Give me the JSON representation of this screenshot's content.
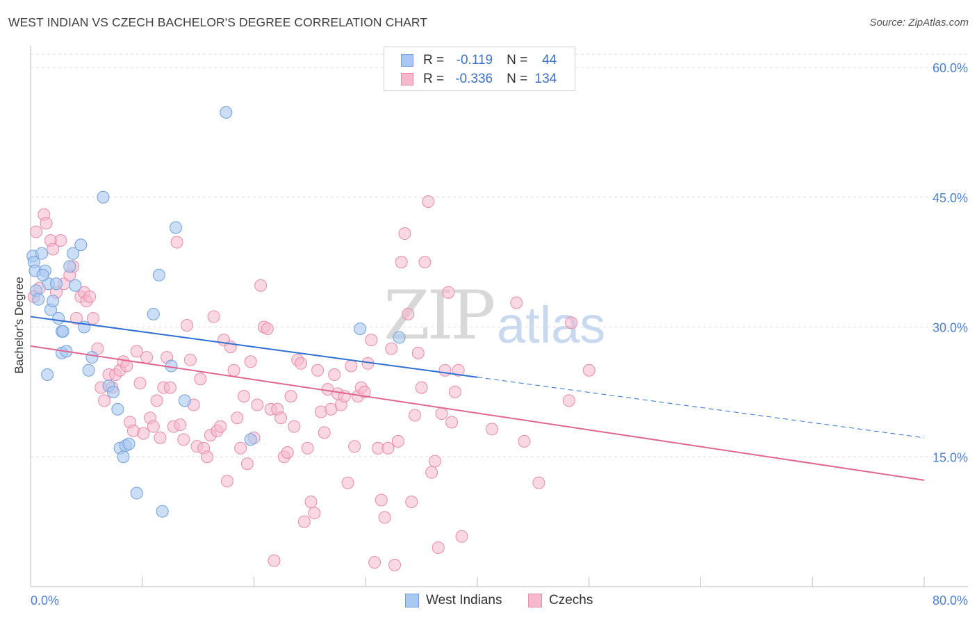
{
  "title": "WEST INDIAN VS CZECH BACHELOR'S DEGREE CORRELATION CHART",
  "source": "Source: ZipAtlas.com",
  "watermark": {
    "zip": "ZIP",
    "atlas": "atlas"
  },
  "legend": {
    "rows": [
      {
        "r_label": "R =",
        "r_value": "-0.119",
        "n_label": "N =",
        "n_value": "44"
      },
      {
        "r_label": "R =",
        "r_value": "-0.336",
        "n_label": "N =",
        "n_value": "134"
      }
    ],
    "bottom": [
      {
        "label": "West Indians"
      },
      {
        "label": "Czechs"
      }
    ]
  },
  "colors": {
    "west_indians_fill": "#a9c8f0",
    "west_indians_stroke": "#6f9fdc",
    "west_indians_line": "#2d6fd2",
    "czechs_fill": "#f6b8cc",
    "czechs_stroke": "#e88aa8",
    "czechs_line": "#e06690",
    "tick_text": "#4a7fd0",
    "grid": "#dddddd"
  },
  "chart_data": {
    "type": "scatter",
    "title": "WEST INDIAN VS CZECH BACHELOR'S DEGREE CORRELATION CHART",
    "xlabel": "",
    "ylabel": "Bachelor's Degree",
    "xlim": [
      0,
      80
    ],
    "ylim": [
      0,
      60
    ],
    "x_tick_labels": [
      "0.0%",
      "80.0%"
    ],
    "y_tick_values": [
      15,
      30,
      45,
      60
    ],
    "y_tick_labels": [
      "15.0%",
      "30.0%",
      "45.0%",
      "60.0%"
    ],
    "series": [
      {
        "name": "West Indians",
        "r": -0.119,
        "n": 44,
        "trend": {
          "x_start": 0,
          "y_start": 31.2,
          "x_solid_end": 40,
          "x_end": 80,
          "y_end": 17.2
        },
        "points": [
          [
            0.2,
            38.2
          ],
          [
            0.3,
            37.5
          ],
          [
            0.4,
            36.5
          ],
          [
            0.5,
            34.2
          ],
          [
            0.7,
            33.2
          ],
          [
            1.0,
            38.5
          ],
          [
            1.3,
            36.5
          ],
          [
            1.6,
            35.0
          ],
          [
            1.8,
            32.0
          ],
          [
            2.3,
            35.0
          ],
          [
            2.5,
            31.0
          ],
          [
            2.8,
            29.5
          ],
          [
            2.8,
            27.0
          ],
          [
            3.5,
            37.0
          ],
          [
            3.8,
            38.5
          ],
          [
            1.5,
            24.5
          ],
          [
            3.2,
            27.2
          ],
          [
            4.0,
            34.8
          ],
          [
            4.5,
            39.5
          ],
          [
            4.8,
            30.0
          ],
          [
            5.2,
            25.0
          ],
          [
            5.5,
            26.5
          ],
          [
            6.5,
            45.0
          ],
          [
            7.0,
            23.2
          ],
          [
            7.4,
            22.5
          ],
          [
            7.8,
            20.5
          ],
          [
            8.0,
            16.0
          ],
          [
            8.3,
            15.0
          ],
          [
            8.5,
            16.3
          ],
          [
            8.8,
            16.5
          ],
          [
            9.5,
            10.8
          ],
          [
            11.0,
            31.5
          ],
          [
            11.5,
            36.0
          ],
          [
            11.8,
            8.7
          ],
          [
            12.6,
            25.5
          ],
          [
            13.0,
            41.5
          ],
          [
            13.8,
            21.5
          ],
          [
            17.5,
            54.8
          ],
          [
            19.7,
            17.0
          ],
          [
            29.5,
            29.8
          ],
          [
            33.0,
            28.8
          ],
          [
            2.0,
            33.0
          ],
          [
            1.1,
            36.0
          ],
          [
            2.9,
            29.5
          ]
        ]
      },
      {
        "name": "Czechs",
        "r": -0.336,
        "n": 134,
        "trend": {
          "x_start": 0,
          "y_start": 27.8,
          "x_end": 80,
          "y_end": 12.3
        },
        "points": [
          [
            0.3,
            33.5
          ],
          [
            0.5,
            41.0
          ],
          [
            0.8,
            34.5
          ],
          [
            1.2,
            43.0
          ],
          [
            1.4,
            42.0
          ],
          [
            1.8,
            40.0
          ],
          [
            2.0,
            39.0
          ],
          [
            2.3,
            34.0
          ],
          [
            2.7,
            40.0
          ],
          [
            3.0,
            35.0
          ],
          [
            3.5,
            36.0
          ],
          [
            3.8,
            37.0
          ],
          [
            4.1,
            31.0
          ],
          [
            4.5,
            33.5
          ],
          [
            4.8,
            34.0
          ],
          [
            5.0,
            33.0
          ],
          [
            5.3,
            33.5
          ],
          [
            5.6,
            31.0
          ],
          [
            6.0,
            27.5
          ],
          [
            6.3,
            23.0
          ],
          [
            6.6,
            21.5
          ],
          [
            7.0,
            24.5
          ],
          [
            7.3,
            23.0
          ],
          [
            7.6,
            24.5
          ],
          [
            8.0,
            25.0
          ],
          [
            8.3,
            26.0
          ],
          [
            8.6,
            25.5
          ],
          [
            8.9,
            19.0
          ],
          [
            9.2,
            18.0
          ],
          [
            9.5,
            27.2
          ],
          [
            9.8,
            23.5
          ],
          [
            10.1,
            17.7
          ],
          [
            10.4,
            26.5
          ],
          [
            10.7,
            19.5
          ],
          [
            11.0,
            18.5
          ],
          [
            11.3,
            21.5
          ],
          [
            11.6,
            17.2
          ],
          [
            11.9,
            23.0
          ],
          [
            12.2,
            26.5
          ],
          [
            12.5,
            23.0
          ],
          [
            12.8,
            18.5
          ],
          [
            13.1,
            39.8
          ],
          [
            13.4,
            18.7
          ],
          [
            13.7,
            17.0
          ],
          [
            14.0,
            30.2
          ],
          [
            14.3,
            26.2
          ],
          [
            14.6,
            21.0
          ],
          [
            14.9,
            16.2
          ],
          [
            15.2,
            24.0
          ],
          [
            15.5,
            16.0
          ],
          [
            15.8,
            15.0
          ],
          [
            16.1,
            17.5
          ],
          [
            16.4,
            31.2
          ],
          [
            16.7,
            18.0
          ],
          [
            17.0,
            18.5
          ],
          [
            17.3,
            28.5
          ],
          [
            17.6,
            12.2
          ],
          [
            17.9,
            27.7
          ],
          [
            18.2,
            25.0
          ],
          [
            18.5,
            19.5
          ],
          [
            18.8,
            16.0
          ],
          [
            19.1,
            22.0
          ],
          [
            19.4,
            14.2
          ],
          [
            19.7,
            26.0
          ],
          [
            20.0,
            17.2
          ],
          [
            20.3,
            21.0
          ],
          [
            20.6,
            34.8
          ],
          [
            20.9,
            30.0
          ],
          [
            21.2,
            29.8
          ],
          [
            21.5,
            20.5
          ],
          [
            21.8,
            3.0
          ],
          [
            22.1,
            20.5
          ],
          [
            22.4,
            19.5
          ],
          [
            22.7,
            15.0
          ],
          [
            23.0,
            15.5
          ],
          [
            23.3,
            22.0
          ],
          [
            23.6,
            18.5
          ],
          [
            23.9,
            26.2
          ],
          [
            24.2,
            25.8
          ],
          [
            24.5,
            7.5
          ],
          [
            24.8,
            16.0
          ],
          [
            25.1,
            9.8
          ],
          [
            25.4,
            8.5
          ],
          [
            25.7,
            25.0
          ],
          [
            26.0,
            20.2
          ],
          [
            26.3,
            17.8
          ],
          [
            26.6,
            22.8
          ],
          [
            26.9,
            20.5
          ],
          [
            27.2,
            24.5
          ],
          [
            27.5,
            22.3
          ],
          [
            27.8,
            21.0
          ],
          [
            28.1,
            22.0
          ],
          [
            28.4,
            12.0
          ],
          [
            28.7,
            25.5
          ],
          [
            29.0,
            16.2
          ],
          [
            29.3,
            22.0
          ],
          [
            29.6,
            23.0
          ],
          [
            29.9,
            22.5
          ],
          [
            30.2,
            25.8
          ],
          [
            30.5,
            28.5
          ],
          [
            30.8,
            2.8
          ],
          [
            31.1,
            16.0
          ],
          [
            31.4,
            10.0
          ],
          [
            31.7,
            8.0
          ],
          [
            32.0,
            16.0
          ],
          [
            32.3,
            27.5
          ],
          [
            32.6,
            2.5
          ],
          [
            32.9,
            16.8
          ],
          [
            33.2,
            37.5
          ],
          [
            33.5,
            40.8
          ],
          [
            33.8,
            31.5
          ],
          [
            34.1,
            9.8
          ],
          [
            34.4,
            19.8
          ],
          [
            34.7,
            27.0
          ],
          [
            35.0,
            23.0
          ],
          [
            35.3,
            37.5
          ],
          [
            35.6,
            44.5
          ],
          [
            35.9,
            13.2
          ],
          [
            36.2,
            14.5
          ],
          [
            36.5,
            4.5
          ],
          [
            36.8,
            20.0
          ],
          [
            37.1,
            25.0
          ],
          [
            37.4,
            34.0
          ],
          [
            37.7,
            19.0
          ],
          [
            38.0,
            22.5
          ],
          [
            38.3,
            25.0
          ],
          [
            38.6,
            5.8
          ],
          [
            41.3,
            18.2
          ],
          [
            43.5,
            32.8
          ],
          [
            44.2,
            16.8
          ],
          [
            45.5,
            12.0
          ],
          [
            48.2,
            21.5
          ],
          [
            48.4,
            30.5
          ],
          [
            50.0,
            25.0
          ]
        ]
      }
    ]
  }
}
